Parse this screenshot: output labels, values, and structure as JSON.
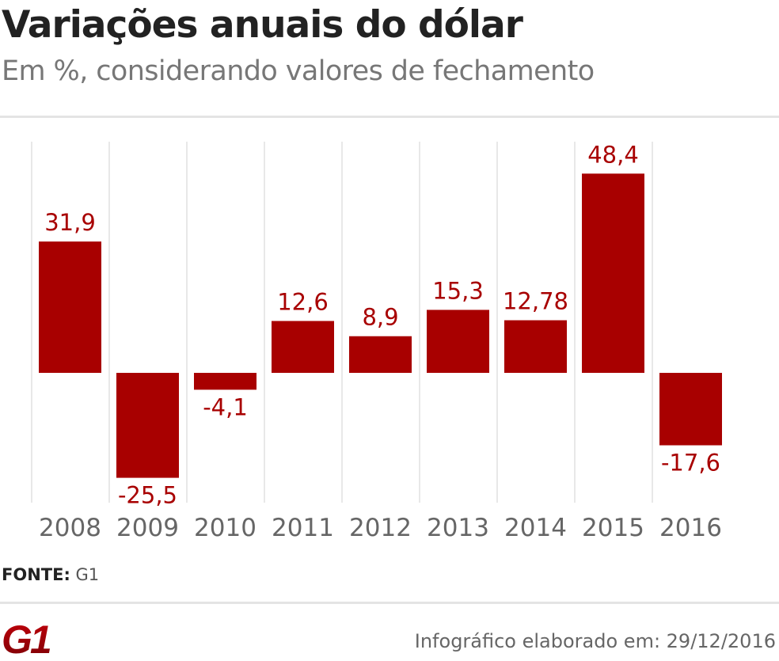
{
  "header": {
    "title": "Variações anuais do dólar",
    "subtitle": "Em %, considerando valores de fechamento"
  },
  "chart_data": {
    "type": "bar",
    "categories": [
      "2008",
      "2009",
      "2010",
      "2011",
      "2012",
      "2013",
      "2014",
      "2015",
      "2016"
    ],
    "values": [
      31.9,
      -25.5,
      -4.1,
      12.6,
      8.9,
      15.3,
      12.78,
      48.4,
      -17.6
    ],
    "data_labels": [
      "31,9",
      "-25,5",
      "-4,1",
      "12,6",
      "8,9",
      "15,3",
      "12,78",
      "48,4",
      "-17,6"
    ],
    "title": "Variações anuais do dólar",
    "subtitle": "Em %, considerando valores de fechamento",
    "xlabel": "",
    "ylabel": "",
    "grid": "vertical",
    "colors": {
      "bar": "#a80000",
      "label": "#a80000",
      "tick": "#666666",
      "grid": "#e8e8e8"
    }
  },
  "source": {
    "label": "FONTE:",
    "value": "G1"
  },
  "footer": {
    "text": "Infográfico elaborado em: 29/12/2016",
    "logo": "G1"
  }
}
